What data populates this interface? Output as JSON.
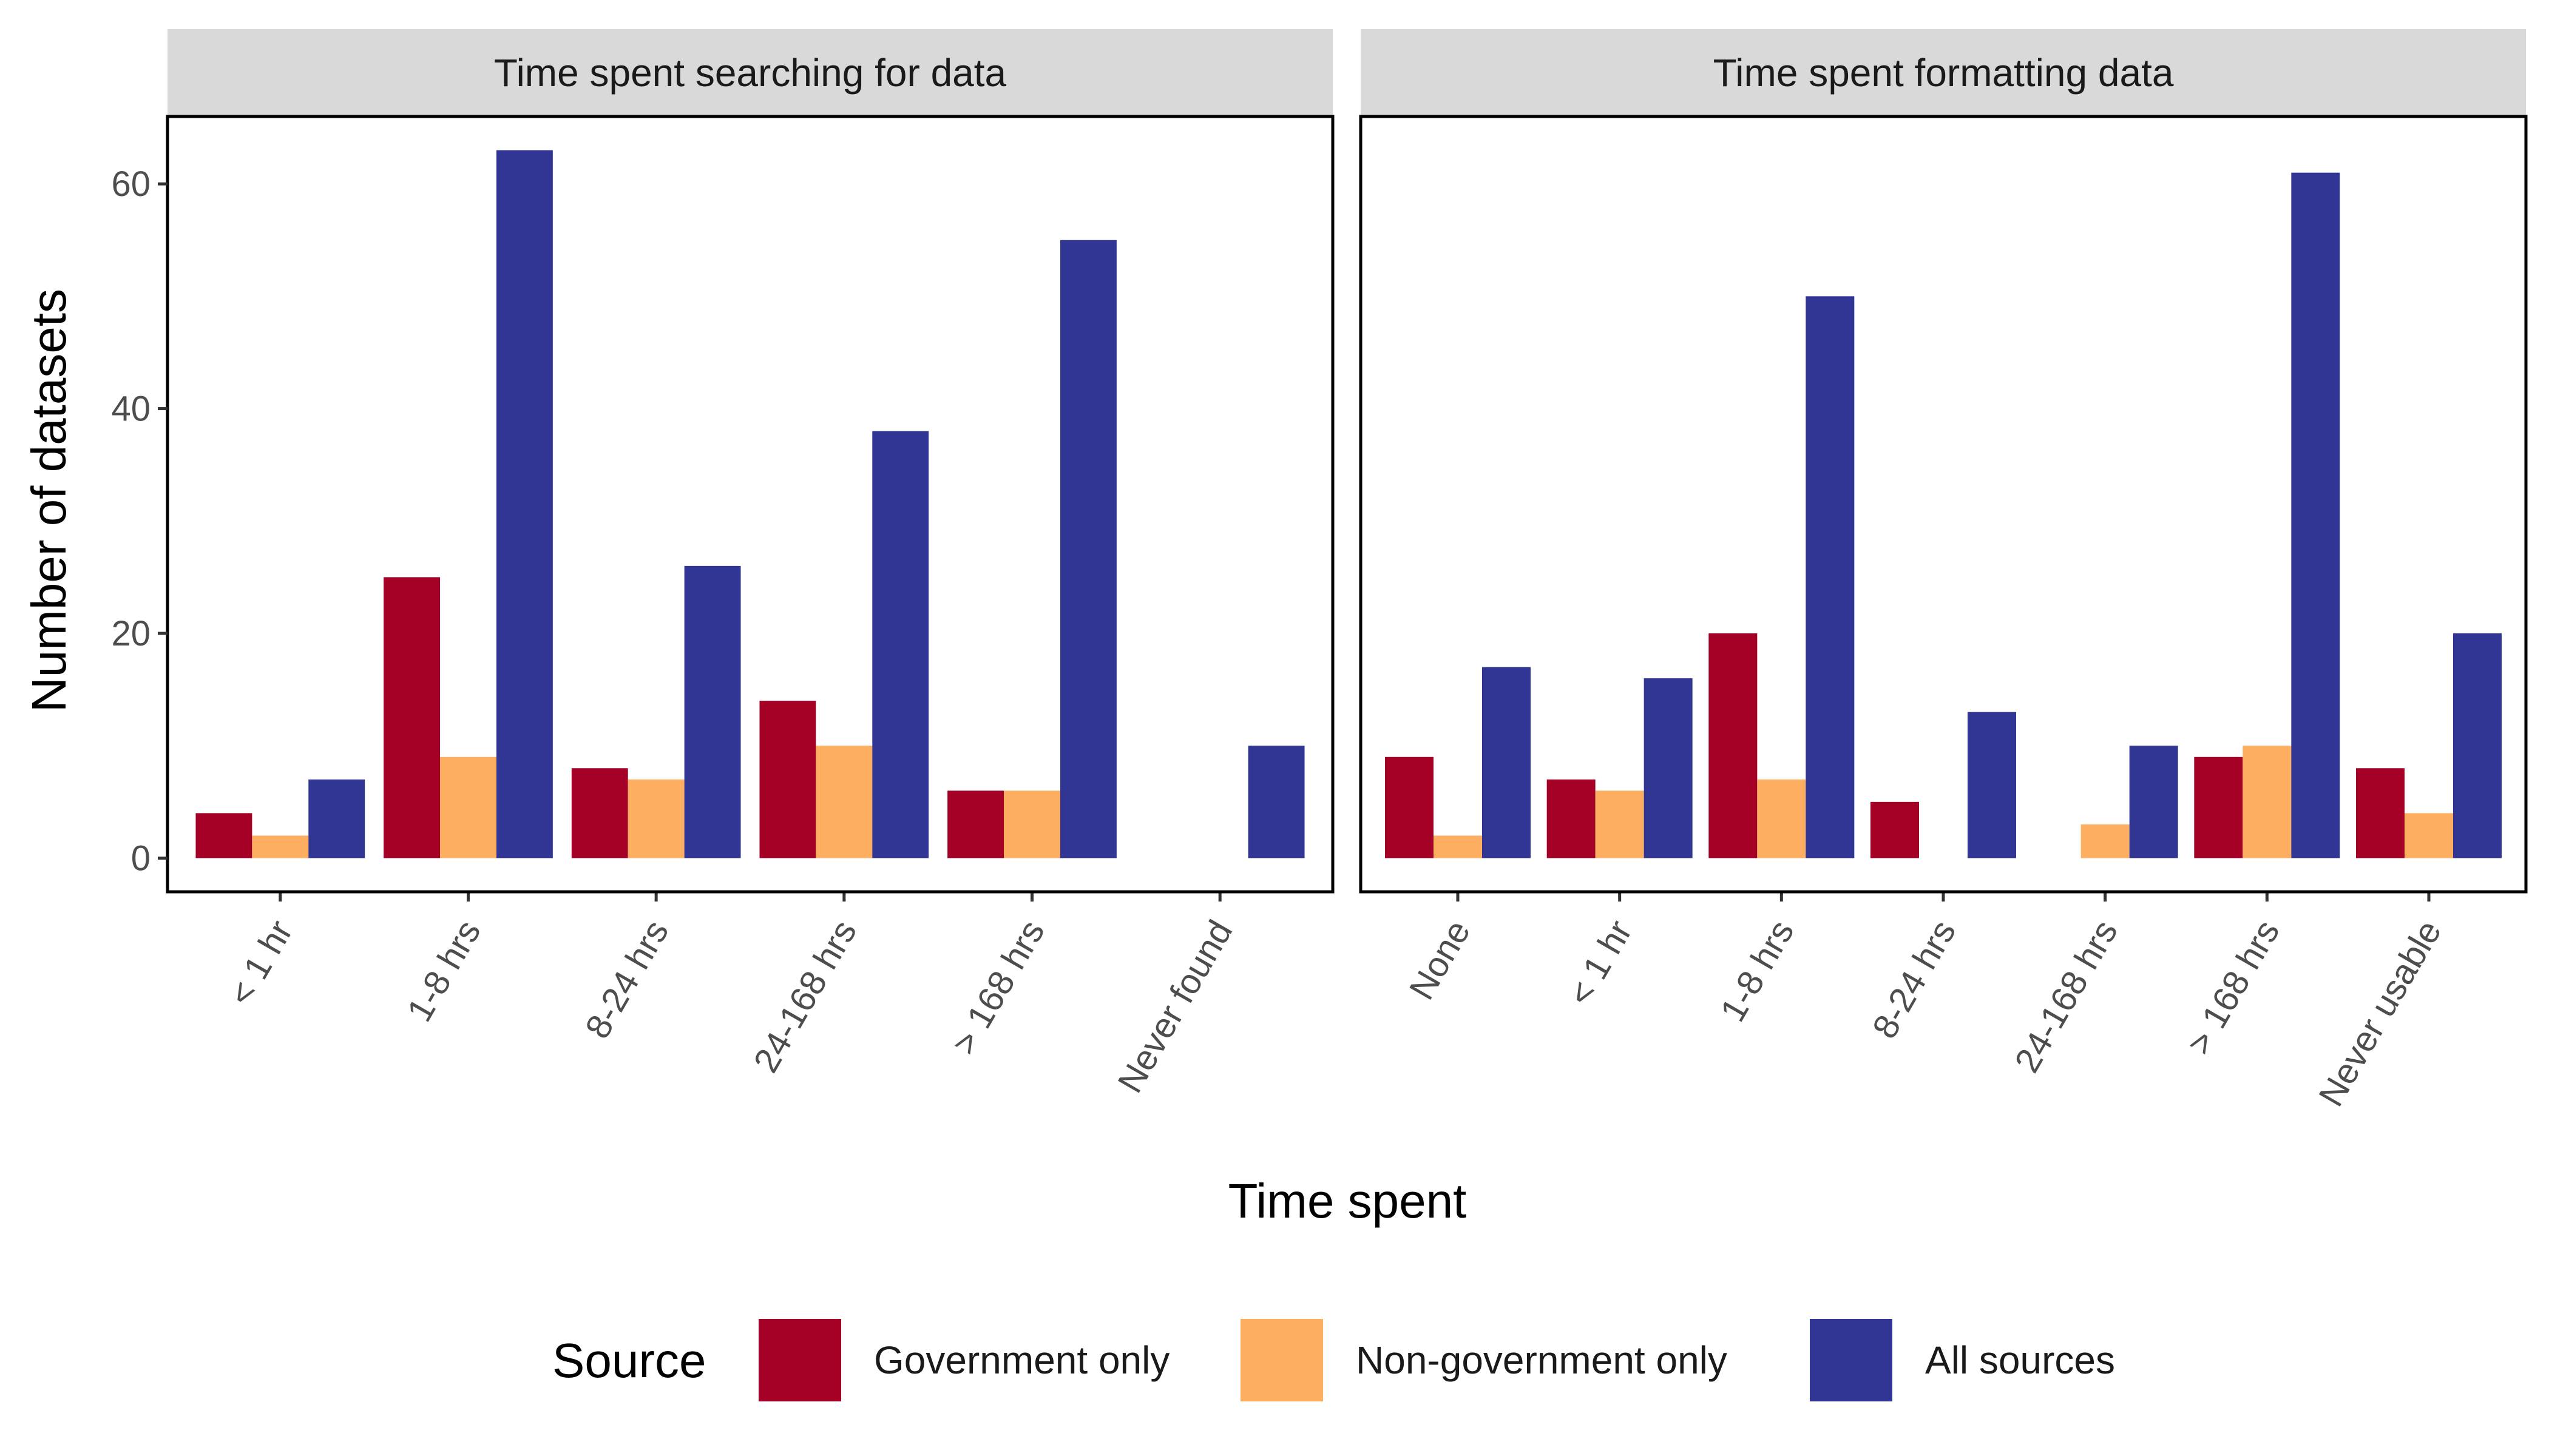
{
  "chart_data": {
    "type": "bar",
    "ylabel": "Number of datasets",
    "xlabel": "Time spent",
    "ylim": [
      -3,
      66
    ],
    "y_ticks": [
      0,
      20,
      40,
      60
    ],
    "grid": false,
    "legend": {
      "title": "Source",
      "position": "bottom",
      "entries": [
        {
          "name": "Government only",
          "color": "#A50026"
        },
        {
          "name": "Non-government only",
          "color": "#FDAE61"
        },
        {
          "name": "All sources",
          "color": "#313695"
        }
      ]
    },
    "panels": [
      {
        "title": "Time spent searching for data",
        "categories": [
          "< 1 hr",
          "1-8 hrs",
          "8-24 hrs",
          "24-168 hrs",
          "> 168 hrs",
          "Never found"
        ],
        "series": [
          {
            "name": "Government only",
            "values": [
              4,
              25,
              8,
              14,
              6,
              null
            ]
          },
          {
            "name": "Non-government only",
            "values": [
              2,
              9,
              7,
              10,
              6,
              null
            ]
          },
          {
            "name": "All sources",
            "values": [
              7,
              63,
              26,
              38,
              55,
              10
            ]
          }
        ]
      },
      {
        "title": "Time spent formatting data",
        "categories": [
          "None",
          "< 1 hr",
          "1-8 hrs",
          "8-24 hrs",
          "24-168 hrs",
          "> 168 hrs",
          "Never usable"
        ],
        "series": [
          {
            "name": "Government only",
            "values": [
              9,
              7,
              20,
              5,
              null,
              9,
              8
            ]
          },
          {
            "name": "Non-government only",
            "values": [
              2,
              6,
              7,
              null,
              3,
              10,
              4
            ]
          },
          {
            "name": "All sources",
            "values": [
              17,
              16,
              50,
              13,
              10,
              61,
              20
            ]
          }
        ]
      }
    ]
  }
}
